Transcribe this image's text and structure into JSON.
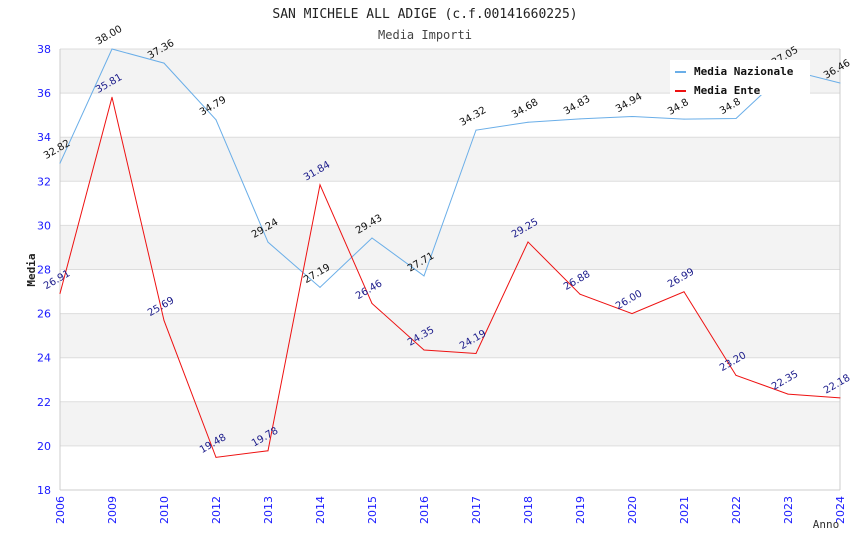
{
  "chart_data": {
    "type": "line",
    "title": "SAN MICHELE ALL ADIGE (c.f.00141660225)",
    "subtitle": "Media Importi",
    "xlabel": "Anno",
    "ylabel": "Media",
    "ylim": [
      18,
      38
    ],
    "yticks": [
      18,
      20,
      22,
      24,
      26,
      28,
      30,
      32,
      34,
      36,
      38
    ],
    "grid": true,
    "legend_position": "top-right",
    "categories": [
      "2006",
      "2009",
      "2010",
      "2012",
      "2013",
      "2014",
      "2015",
      "2016",
      "2017",
      "2018",
      "2019",
      "2020",
      "2021",
      "2022",
      "2023",
      "2024"
    ],
    "series": [
      {
        "name": "Media Nazionale",
        "color": "#6aaee8",
        "label_color": "#111111",
        "values": [
          32.82,
          38.0,
          37.36,
          34.79,
          29.24,
          27.19,
          29.43,
          27.71,
          34.32,
          34.68,
          34.83,
          34.94,
          34.82,
          34.85,
          37.05,
          36.46
        ],
        "labels": [
          "32.82",
          "38.00",
          "37.36",
          "34.79",
          "29.24",
          "27.19",
          "29.43",
          "27.71",
          "34.32",
          "34.68",
          "34.83",
          "34.94",
          "34.8",
          "34.8",
          "37.05",
          "36.46"
        ]
      },
      {
        "name": "Media Ente",
        "color": "#ee1111",
        "label_color": "#1a1a8a",
        "values": [
          26.91,
          35.81,
          25.69,
          19.48,
          19.78,
          31.84,
          26.46,
          24.35,
          24.19,
          29.25,
          26.88,
          26.0,
          26.99,
          23.2,
          22.35,
          22.18
        ],
        "labels": [
          "26.91",
          "35.81",
          "25.69",
          "19.48",
          "19.78",
          "31.84",
          "26.46",
          "24.35",
          "24.19",
          "29.25",
          "26.88",
          "26.00",
          "26.99",
          "23.20",
          "22.35",
          "22.18"
        ]
      }
    ]
  }
}
